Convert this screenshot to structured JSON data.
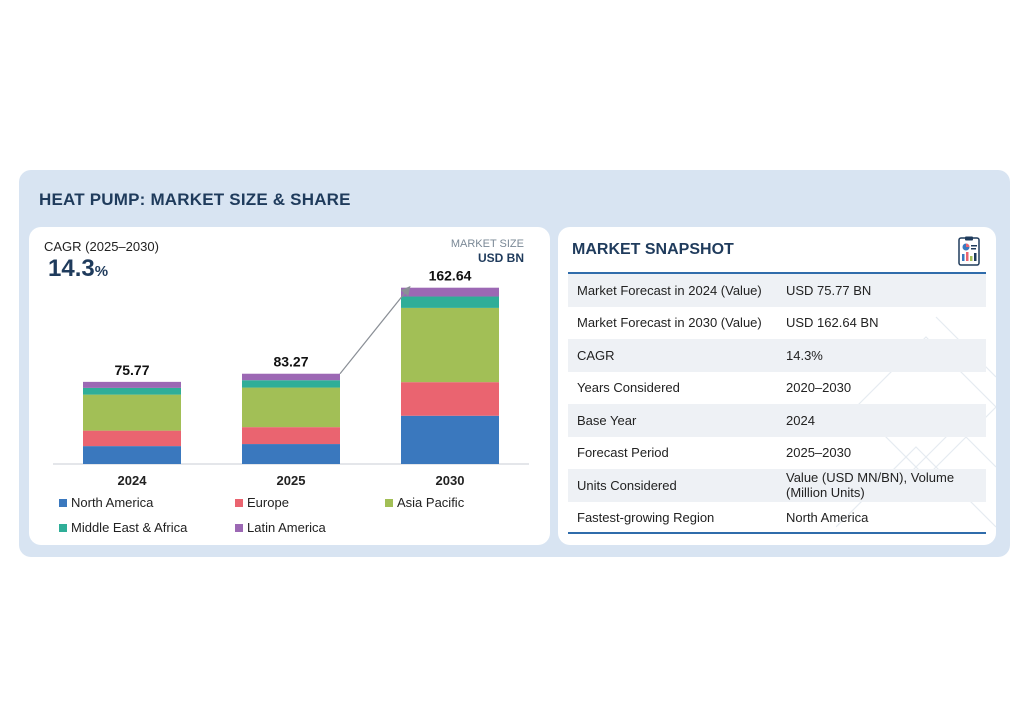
{
  "title": "HEAT PUMP: MARKET SIZE & SHARE",
  "cagr": {
    "label": "CAGR (2025–2030)",
    "value": "14.3",
    "unit": "%"
  },
  "market_size": {
    "label": "MARKET SIZE",
    "unit": "USD BN"
  },
  "chart_data": {
    "type": "bar",
    "stacked": true,
    "categories": [
      "2024",
      "2025",
      "2030"
    ],
    "totals": [
      75.77,
      83.27,
      162.64
    ],
    "total_labels": [
      "75.77",
      "83.27",
      "162.64"
    ],
    "series": [
      {
        "name": "North America",
        "color": "#3a78be",
        "values": [
          16.5,
          18.4,
          44.5
        ]
      },
      {
        "name": "Europe",
        "color": "#ea6470",
        "values": [
          14.3,
          15.6,
          31.0
        ]
      },
      {
        "name": "Asia Pacific",
        "color": "#a2bf56",
        "values": [
          33.2,
          36.5,
          68.5
        ]
      },
      {
        "name": "Middle East & Africa",
        "color": "#2fae98",
        "values": [
          6.2,
          6.8,
          10.5
        ]
      },
      {
        "name": "Latin America",
        "color": "#9c68b4",
        "values": [
          5.57,
          5.97,
          8.14
        ]
      }
    ],
    "growth_arrow": {
      "from": "2025",
      "to": "2030"
    },
    "grid": false,
    "legend_position": "bottom"
  },
  "snapshot": {
    "title": "MARKET SNAPSHOT",
    "icon": "report-clipboard-icon",
    "rows": [
      {
        "label": "Market Forecast in 2024 (Value)",
        "value": "USD 75.77 BN"
      },
      {
        "label": "Market Forecast in 2030 (Value)",
        "value": "USD 162.64 BN"
      },
      {
        "label": "CAGR",
        "value": "14.3%"
      },
      {
        "label": "Years Considered",
        "value": "2020–2030"
      },
      {
        "label": "Base Year",
        "value": "2024"
      },
      {
        "label": "Forecast Period",
        "value": "2025–2030"
      },
      {
        "label": "Units Considered",
        "value": "Value (USD MN/BN), Volume (Million Units)"
      },
      {
        "label": "Fastest-growing Region",
        "value": "North America"
      }
    ]
  }
}
